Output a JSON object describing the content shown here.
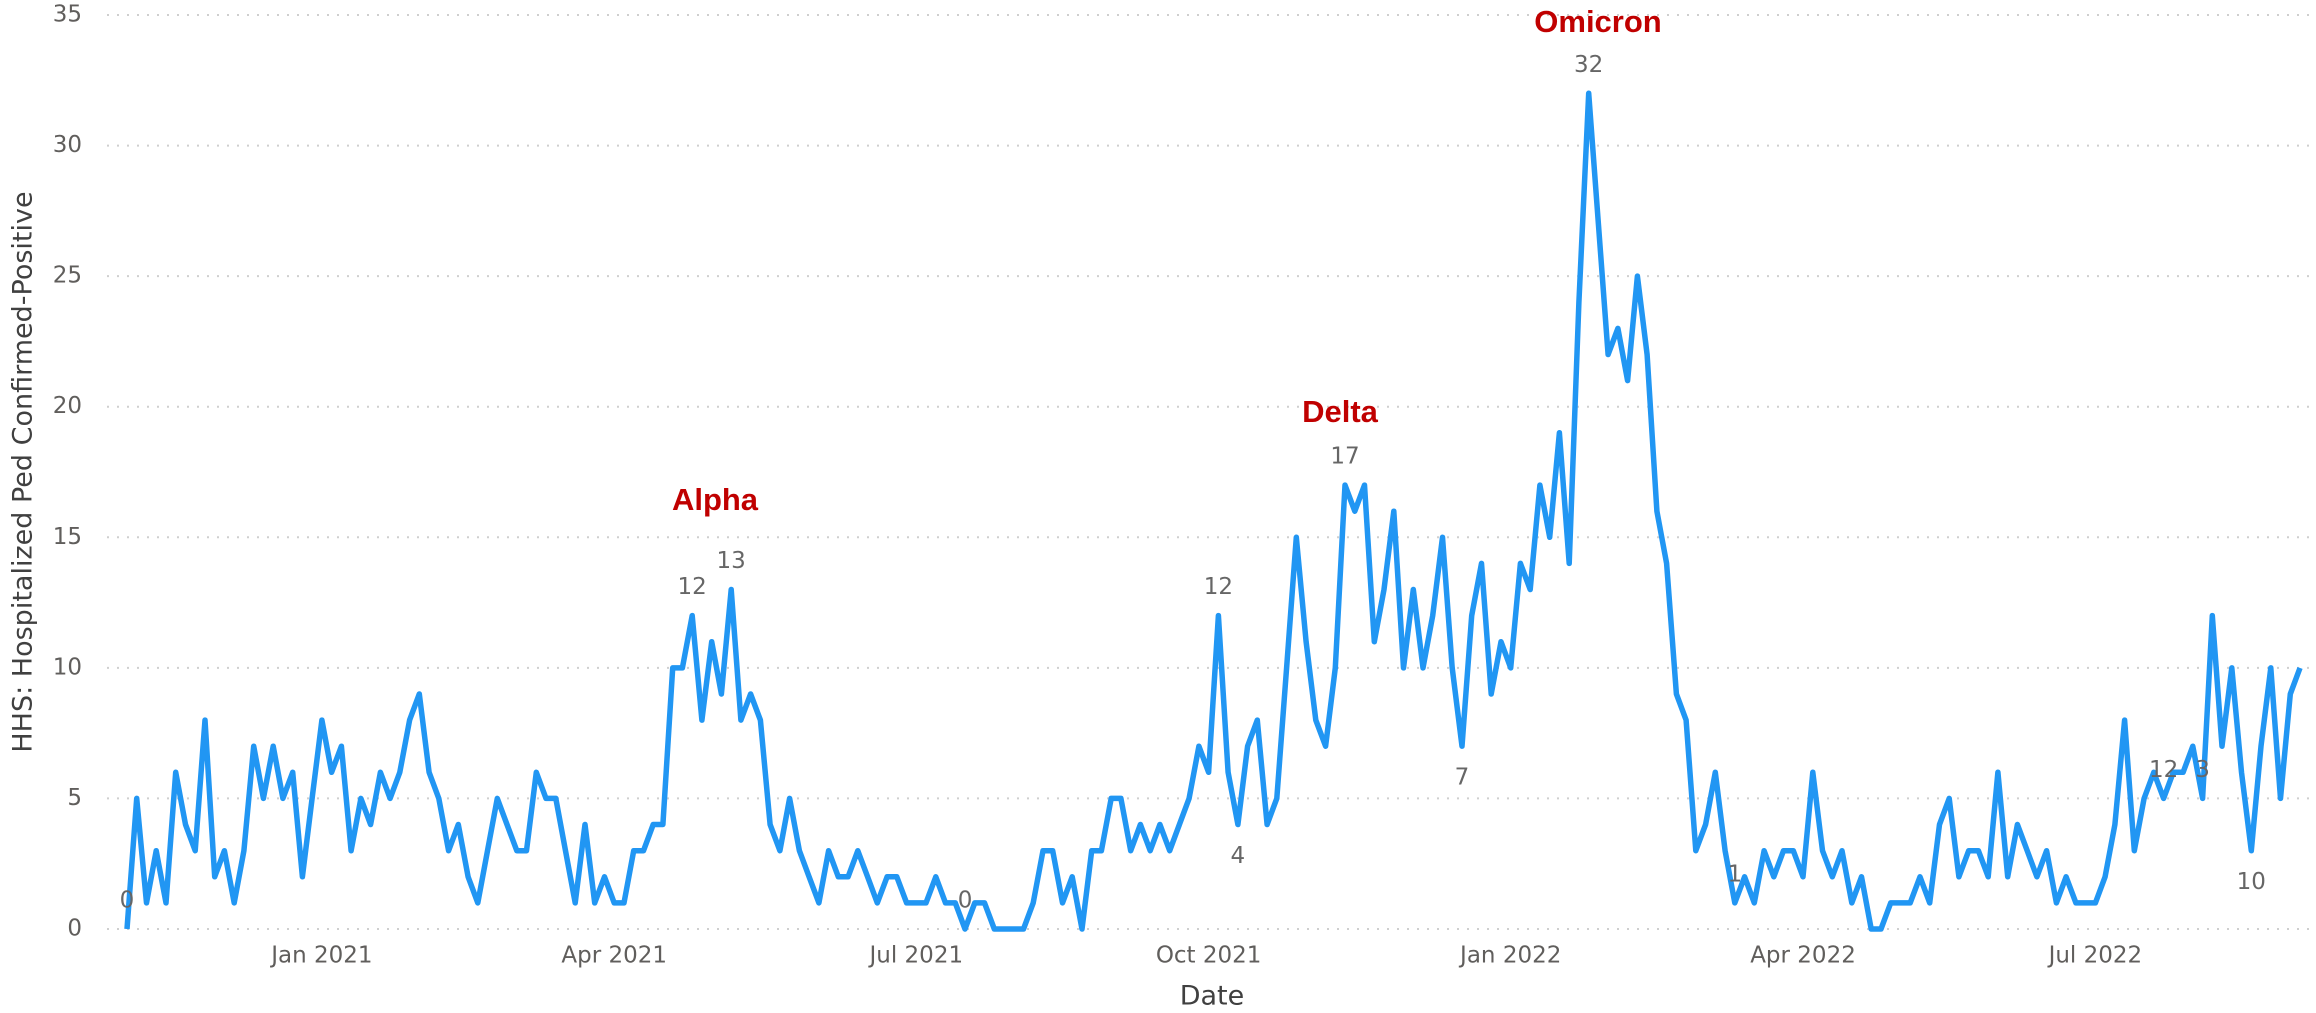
{
  "chart_data": {
    "type": "line",
    "x_label": "Date",
    "y_label": "HHS: Hospitalized Ped Confirmed-Positive",
    "annotations": [
      "Alpha",
      "Delta",
      "Omicron"
    ],
    "categories": [
      null,
      null,
      null,
      null,
      null,
      null,
      null,
      null,
      null,
      null,
      null,
      null,
      null,
      null,
      null,
      null,
      null,
      null,
      null,
      null,
      "Jan 2021",
      null,
      null,
      null,
      null,
      null,
      null,
      null,
      null,
      null,
      null,
      null,
      null,
      null,
      null,
      null,
      null,
      null,
      null,
      null,
      null,
      null,
      null,
      null,
      null,
      null,
      null,
      null,
      null,
      null,
      "Apr 2021",
      null,
      null,
      null,
      null,
      null,
      null,
      null,
      null,
      null,
      null,
      null,
      null,
      null,
      null,
      null,
      null,
      null,
      null,
      null,
      null,
      null,
      null,
      null,
      null,
      null,
      null,
      null,
      null,
      null,
      null,
      "Jul 2021",
      null,
      null,
      null,
      null,
      null,
      null,
      null,
      null,
      null,
      null,
      null,
      null,
      null,
      null,
      null,
      null,
      null,
      null,
      null,
      null,
      null,
      null,
      null,
      null,
      null,
      null,
      null,
      null,
      null,
      "Oct 2021",
      null,
      null,
      null,
      null,
      null,
      null,
      null,
      null,
      null,
      null,
      null,
      null,
      null,
      null,
      null,
      null,
      null,
      null,
      null,
      null,
      null,
      null,
      null,
      null,
      null,
      null,
      null,
      null,
      null,
      null,
      "Jan 2022",
      null,
      null,
      null,
      null,
      null,
      null,
      null,
      null,
      null,
      null,
      null,
      null,
      null,
      null,
      null,
      null,
      null,
      null,
      null,
      null,
      null,
      null,
      null,
      null,
      null,
      null,
      null,
      null,
      null,
      "Apr 2022",
      null,
      null,
      null,
      null,
      null,
      null,
      null,
      null,
      null,
      null,
      null,
      null,
      null,
      null,
      null,
      null,
      null,
      null,
      null,
      null,
      null,
      null,
      null,
      null,
      null,
      null,
      null,
      null,
      null,
      "Jul 2022",
      null,
      null,
      null,
      null,
      null,
      null,
      null,
      null,
      null,
      null,
      null,
      null,
      null,
      null,
      null,
      null,
      null,
      null,
      null,
      null,
      null
    ],
    "series": [
      {
        "name": "HHS: Hospitalized Ped Confirmed-Positive",
        "color": "#2196f3",
        "values": [
          0,
          5,
          1,
          3,
          1,
          6,
          4,
          3,
          8,
          2,
          3,
          1,
          3,
          7,
          5,
          7,
          5,
          6,
          2,
          5,
          8,
          6,
          7,
          3,
          5,
          4,
          6,
          5,
          6,
          8,
          9,
          6,
          5,
          3,
          4,
          2,
          1,
          3,
          5,
          4,
          3,
          3,
          6,
          5,
          5,
          3,
          1,
          4,
          1,
          2,
          1,
          1,
          3,
          3,
          4,
          4,
          10,
          10,
          12,
          8,
          11,
          9,
          13,
          8,
          9,
          8,
          4,
          3,
          5,
          3,
          2,
          1,
          3,
          2,
          2,
          3,
          2,
          1,
          2,
          2,
          1,
          1,
          1,
          2,
          1,
          1,
          0,
          1,
          1,
          0,
          0,
          0,
          0,
          1,
          3,
          3,
          1,
          2,
          0,
          3,
          3,
          5,
          5,
          3,
          4,
          3,
          4,
          3,
          4,
          5,
          7,
          6,
          12,
          6,
          4,
          7,
          8,
          4,
          5,
          10,
          15,
          11,
          8,
          7,
          10,
          17,
          16,
          17,
          11,
          13,
          16,
          10,
          13,
          10,
          12,
          15,
          10,
          7,
          12,
          14,
          9,
          11,
          10,
          14,
          13,
          17,
          15,
          19,
          14,
          24,
          32,
          27,
          22,
          23,
          21,
          25,
          22,
          16,
          14,
          9,
          8,
          3,
          4,
          6,
          3,
          1,
          2,
          1,
          3,
          2,
          3,
          3,
          2,
          6,
          3,
          2,
          3,
          1,
          2,
          0,
          0,
          1,
          1,
          1,
          2,
          1,
          4,
          5,
          2,
          3,
          3,
          2,
          6,
          2,
          4,
          3,
          2,
          3,
          1,
          2,
          1,
          1,
          1,
          2,
          4,
          8,
          3,
          5,
          6,
          5,
          6,
          6,
          7,
          5,
          12,
          7,
          10,
          6,
          3,
          7,
          10,
          5,
          9,
          10
        ],
        "value_labels": [
          "0",
          null,
          null,
          null,
          null,
          null,
          null,
          null,
          null,
          null,
          null,
          null,
          null,
          null,
          null,
          null,
          null,
          null,
          null,
          null,
          null,
          null,
          null,
          null,
          null,
          null,
          null,
          null,
          null,
          null,
          null,
          null,
          null,
          null,
          null,
          null,
          null,
          null,
          null,
          null,
          null,
          null,
          null,
          null,
          null,
          null,
          null,
          null,
          null,
          null,
          null,
          null,
          null,
          null,
          null,
          null,
          null,
          null,
          "12",
          null,
          null,
          null,
          "13",
          null,
          null,
          null,
          null,
          null,
          null,
          null,
          null,
          null,
          null,
          null,
          null,
          null,
          null,
          null,
          null,
          null,
          null,
          null,
          null,
          null,
          null,
          null,
          "0",
          null,
          null,
          null,
          null,
          null,
          null,
          null,
          null,
          null,
          null,
          null,
          null,
          null,
          null,
          null,
          null,
          null,
          null,
          null,
          null,
          null,
          null,
          null,
          null,
          null,
          "12",
          null,
          "4",
          null,
          null,
          null,
          null,
          null,
          null,
          null,
          null,
          null,
          null,
          "17",
          null,
          null,
          null,
          null,
          null,
          null,
          null,
          null,
          null,
          null,
          null,
          "7",
          null,
          null,
          null,
          null,
          null,
          null,
          null,
          null,
          null,
          null,
          null,
          null,
          "32",
          null,
          null,
          null,
          null,
          null,
          null,
          null,
          null,
          null,
          null,
          null,
          null,
          null,
          null,
          "1",
          null,
          null,
          null,
          null,
          null,
          null,
          null,
          null,
          null,
          null,
          null,
          null,
          null,
          null,
          null,
          null,
          null,
          null,
          null,
          null,
          null,
          null,
          null,
          null,
          null,
          null,
          null,
          null,
          null,
          null,
          null,
          null,
          null,
          null,
          null,
          null,
          null,
          null,
          null,
          null,
          null,
          null,
          null,
          "12",
          null,
          null,
          null,
          "3",
          null,
          null,
          null,
          null,
          "10"
        ]
      }
    ],
    "ylim": [
      0,
      35
    ],
    "yticks": [
      0,
      5,
      10,
      15,
      20,
      25,
      30,
      35
    ],
    "grid": true
  }
}
